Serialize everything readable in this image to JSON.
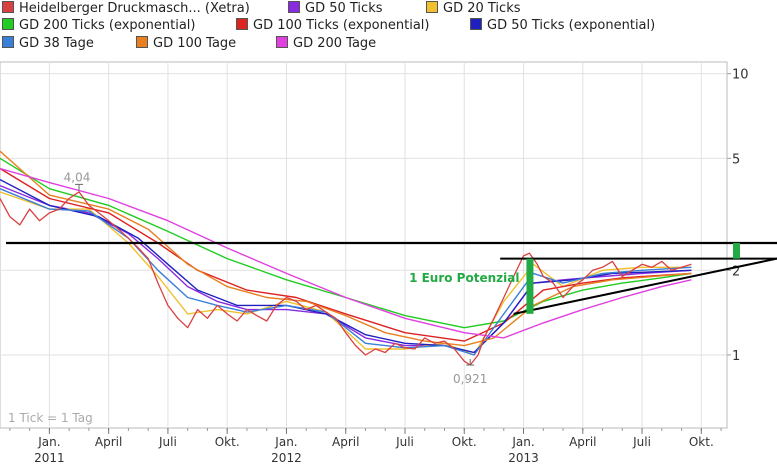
{
  "legend": [
    {
      "label": "Heidelberger Druckmasch... (Xetra)",
      "color": "#d94040"
    },
    {
      "label": "GD 50 Ticks",
      "color": "#8a2be2"
    },
    {
      "label": "GD 20 Ticks",
      "color": "#f0c030"
    },
    {
      "label": "GD 200 Ticks (exponential)",
      "color": "#22cc22"
    },
    {
      "label": "GD 100 Ticks (exponential)",
      "color": "#dd2222"
    },
    {
      "label": "GD 50 Ticks (exponential)",
      "color": "#2020c0"
    },
    {
      "label": "GD 38 Tage",
      "color": "#3a7fd8"
    },
    {
      "label": "GD 100 Tage",
      "color": "#e88020"
    },
    {
      "label": "GD 200 Tage",
      "color": "#e040e0"
    }
  ],
  "footnote": "1 Tick = 1 Tag",
  "chart_data": {
    "type": "line",
    "yscale": "log",
    "ylim": [
      0.55,
      11
    ],
    "y_ticks": [
      "10",
      "5",
      "2",
      "1"
    ],
    "y_tick_values": [
      10,
      5,
      2,
      1
    ],
    "x_ticks": [
      "Jan.",
      "April",
      "Juli",
      "Okt.",
      "Jan.",
      "April",
      "Juli",
      "Okt.",
      "Jan.",
      "April",
      "Juli",
      "Okt."
    ],
    "x_years": [
      "2011",
      "2012",
      "2013"
    ],
    "x_year_tick_index": [
      0,
      4,
      8
    ],
    "x_range_months": [
      -2.5,
      34.3
    ],
    "annotations": {
      "high_label": "4,04",
      "high_value": 4.04,
      "low_label": "0,921",
      "low_value": 0.921,
      "potential_label": "1 Euro Potenzial",
      "resistance_level": 2.5,
      "triangle_top": 2.2
    },
    "series": [
      {
        "name": "Heidelberger Druckmasch... (Xetra)",
        "color": "#d94040",
        "points": [
          [
            -2.5,
            3.6
          ],
          [
            -2,
            3.1
          ],
          [
            -1.5,
            2.9
          ],
          [
            -1,
            3.3
          ],
          [
            -0.5,
            3.0
          ],
          [
            0,
            3.2
          ],
          [
            0.5,
            3.3
          ],
          [
            1,
            3.6
          ],
          [
            1.5,
            3.8
          ],
          [
            2,
            3.4
          ],
          [
            2.5,
            3.2
          ],
          [
            3,
            3.0
          ],
          [
            3.5,
            2.8
          ],
          [
            4,
            2.6
          ],
          [
            4.5,
            2.4
          ],
          [
            5,
            2.2
          ],
          [
            5.5,
            1.8
          ],
          [
            6,
            1.5
          ],
          [
            6.5,
            1.35
          ],
          [
            7,
            1.25
          ],
          [
            7.5,
            1.45
          ],
          [
            8,
            1.35
          ],
          [
            8.5,
            1.5
          ],
          [
            9,
            1.4
          ],
          [
            9.5,
            1.32
          ],
          [
            10,
            1.45
          ],
          [
            10.5,
            1.38
          ],
          [
            11,
            1.32
          ],
          [
            11.5,
            1.5
          ],
          [
            12,
            1.6
          ],
          [
            12.5,
            1.55
          ],
          [
            13,
            1.45
          ],
          [
            13.5,
            1.5
          ],
          [
            14,
            1.42
          ],
          [
            14.5,
            1.35
          ],
          [
            15,
            1.2
          ],
          [
            15.5,
            1.08
          ],
          [
            16,
            1.0
          ],
          [
            16.5,
            1.05
          ],
          [
            17,
            1.02
          ],
          [
            17.5,
            1.1
          ],
          [
            18,
            1.06
          ],
          [
            18.5,
            1.05
          ],
          [
            19,
            1.15
          ],
          [
            19.5,
            1.1
          ],
          [
            20,
            1.12
          ],
          [
            20.5,
            1.05
          ],
          [
            21,
            0.95
          ],
          [
            21.3,
            0.921
          ],
          [
            21.7,
            1.0
          ],
          [
            22,
            1.15
          ],
          [
            22.5,
            1.35
          ],
          [
            23,
            1.6
          ],
          [
            23.5,
            1.9
          ],
          [
            24,
            2.25
          ],
          [
            24.3,
            2.3
          ],
          [
            24.7,
            2.1
          ],
          [
            25,
            1.9
          ],
          [
            25.5,
            1.8
          ],
          [
            26,
            1.6
          ],
          [
            26.5,
            1.75
          ],
          [
            27,
            1.85
          ],
          [
            27.5,
            2.0
          ],
          [
            28,
            2.05
          ],
          [
            28.5,
            2.15
          ],
          [
            29,
            1.9
          ],
          [
            29.5,
            2.0
          ],
          [
            30,
            2.1
          ],
          [
            30.5,
            2.05
          ],
          [
            31,
            2.15
          ],
          [
            31.5,
            2.0
          ],
          [
            32,
            2.05
          ],
          [
            32.5,
            2.1
          ]
        ]
      },
      {
        "name": "GD 50 Ticks",
        "color": "#8a2be2",
        "points": [
          [
            -2.5,
            4.0
          ],
          [
            0,
            3.4
          ],
          [
            2,
            3.2
          ],
          [
            4,
            2.7
          ],
          [
            5.5,
            2.2
          ],
          [
            7,
            1.75
          ],
          [
            8.5,
            1.55
          ],
          [
            10,
            1.45
          ],
          [
            12,
            1.45
          ],
          [
            14,
            1.4
          ],
          [
            16,
            1.15
          ],
          [
            18,
            1.08
          ],
          [
            20,
            1.08
          ],
          [
            21.5,
            1.02
          ],
          [
            23,
            1.3
          ],
          [
            24.5,
            1.8
          ],
          [
            26,
            1.85
          ],
          [
            28,
            1.9
          ],
          [
            30,
            1.95
          ],
          [
            32.5,
            2.0
          ]
        ]
      },
      {
        "name": "GD 20 Ticks",
        "color": "#f0c030",
        "points": [
          [
            -2.5,
            3.8
          ],
          [
            0,
            3.3
          ],
          [
            2,
            3.3
          ],
          [
            4,
            2.5
          ],
          [
            5.5,
            1.9
          ],
          [
            7,
            1.4
          ],
          [
            8.5,
            1.45
          ],
          [
            10,
            1.4
          ],
          [
            12,
            1.55
          ],
          [
            14,
            1.42
          ],
          [
            16,
            1.05
          ],
          [
            18,
            1.05
          ],
          [
            20,
            1.1
          ],
          [
            21.5,
            1.0
          ],
          [
            23,
            1.55
          ],
          [
            24.5,
            2.1
          ],
          [
            26,
            1.75
          ],
          [
            28,
            2.0
          ],
          [
            30,
            2.05
          ],
          [
            32.5,
            2.05
          ]
        ]
      },
      {
        "name": "GD 200 Ticks (exponential)",
        "color": "#22cc22",
        "points": [
          [
            -2.5,
            5.0
          ],
          [
            0,
            3.9
          ],
          [
            3,
            3.4
          ],
          [
            6,
            2.75
          ],
          [
            9,
            2.2
          ],
          [
            12,
            1.85
          ],
          [
            15,
            1.6
          ],
          [
            18,
            1.38
          ],
          [
            21,
            1.25
          ],
          [
            23,
            1.32
          ],
          [
            25,
            1.55
          ],
          [
            27,
            1.7
          ],
          [
            29,
            1.8
          ],
          [
            31,
            1.88
          ],
          [
            32.5,
            1.95
          ]
        ]
      },
      {
        "name": "GD 100 Ticks (exponential)",
        "color": "#dd2222",
        "points": [
          [
            -2.5,
            4.6
          ],
          [
            0,
            3.6
          ],
          [
            3,
            3.2
          ],
          [
            5.5,
            2.5
          ],
          [
            7.5,
            2.0
          ],
          [
            10,
            1.7
          ],
          [
            12.5,
            1.6
          ],
          [
            15,
            1.4
          ],
          [
            18,
            1.2
          ],
          [
            21,
            1.12
          ],
          [
            23,
            1.3
          ],
          [
            25,
            1.7
          ],
          [
            27,
            1.8
          ],
          [
            29,
            1.88
          ],
          [
            32.5,
            1.95
          ]
        ]
      },
      {
        "name": "GD 50 Ticks (exponential)",
        "color": "#2020c0",
        "points": [
          [
            -2.5,
            4.2
          ],
          [
            0,
            3.4
          ],
          [
            2.5,
            3.1
          ],
          [
            4.5,
            2.6
          ],
          [
            6,
            2.1
          ],
          [
            7.5,
            1.7
          ],
          [
            9.5,
            1.5
          ],
          [
            12,
            1.5
          ],
          [
            14,
            1.4
          ],
          [
            16,
            1.18
          ],
          [
            18,
            1.1
          ],
          [
            20,
            1.08
          ],
          [
            21.5,
            1.02
          ],
          [
            23,
            1.3
          ],
          [
            24.5,
            1.8
          ],
          [
            26.5,
            1.85
          ],
          [
            28.5,
            1.95
          ],
          [
            32.5,
            2.0
          ]
        ]
      },
      {
        "name": "GD 38 Tage",
        "color": "#3a7fd8",
        "points": [
          [
            -2.5,
            3.9
          ],
          [
            0,
            3.3
          ],
          [
            2,
            3.25
          ],
          [
            4,
            2.6
          ],
          [
            5.5,
            2.0
          ],
          [
            7,
            1.6
          ],
          [
            8.5,
            1.5
          ],
          [
            10,
            1.42
          ],
          [
            12,
            1.5
          ],
          [
            14,
            1.42
          ],
          [
            16,
            1.1
          ],
          [
            18,
            1.06
          ],
          [
            20,
            1.08
          ],
          [
            21.5,
            1.0
          ],
          [
            23,
            1.4
          ],
          [
            24.5,
            1.95
          ],
          [
            26,
            1.8
          ],
          [
            28,
            1.95
          ],
          [
            30,
            2.0
          ],
          [
            32.5,
            2.05
          ]
        ]
      },
      {
        "name": "GD 100 Tage",
        "color": "#e88020",
        "points": [
          [
            -2.5,
            5.3
          ],
          [
            0,
            3.7
          ],
          [
            3,
            3.3
          ],
          [
            5,
            2.8
          ],
          [
            7,
            2.1
          ],
          [
            9,
            1.75
          ],
          [
            11,
            1.6
          ],
          [
            13,
            1.55
          ],
          [
            15,
            1.38
          ],
          [
            17,
            1.2
          ],
          [
            19,
            1.12
          ],
          [
            21,
            1.08
          ],
          [
            22.5,
            1.15
          ],
          [
            24.5,
            1.5
          ],
          [
            26.5,
            1.75
          ],
          [
            28.5,
            1.85
          ],
          [
            32.5,
            1.95
          ]
        ]
      },
      {
        "name": "GD 200 Tage",
        "color": "#e040e0",
        "points": [
          [
            -2.5,
            4.6
          ],
          [
            0,
            4.1
          ],
          [
            3,
            3.6
          ],
          [
            6,
            3.0
          ],
          [
            9,
            2.4
          ],
          [
            12,
            1.95
          ],
          [
            15,
            1.6
          ],
          [
            18,
            1.35
          ],
          [
            21,
            1.2
          ],
          [
            23,
            1.15
          ],
          [
            25,
            1.3
          ],
          [
            27,
            1.45
          ],
          [
            29,
            1.6
          ],
          [
            31,
            1.75
          ],
          [
            32.5,
            1.85
          ]
        ]
      }
    ]
  }
}
